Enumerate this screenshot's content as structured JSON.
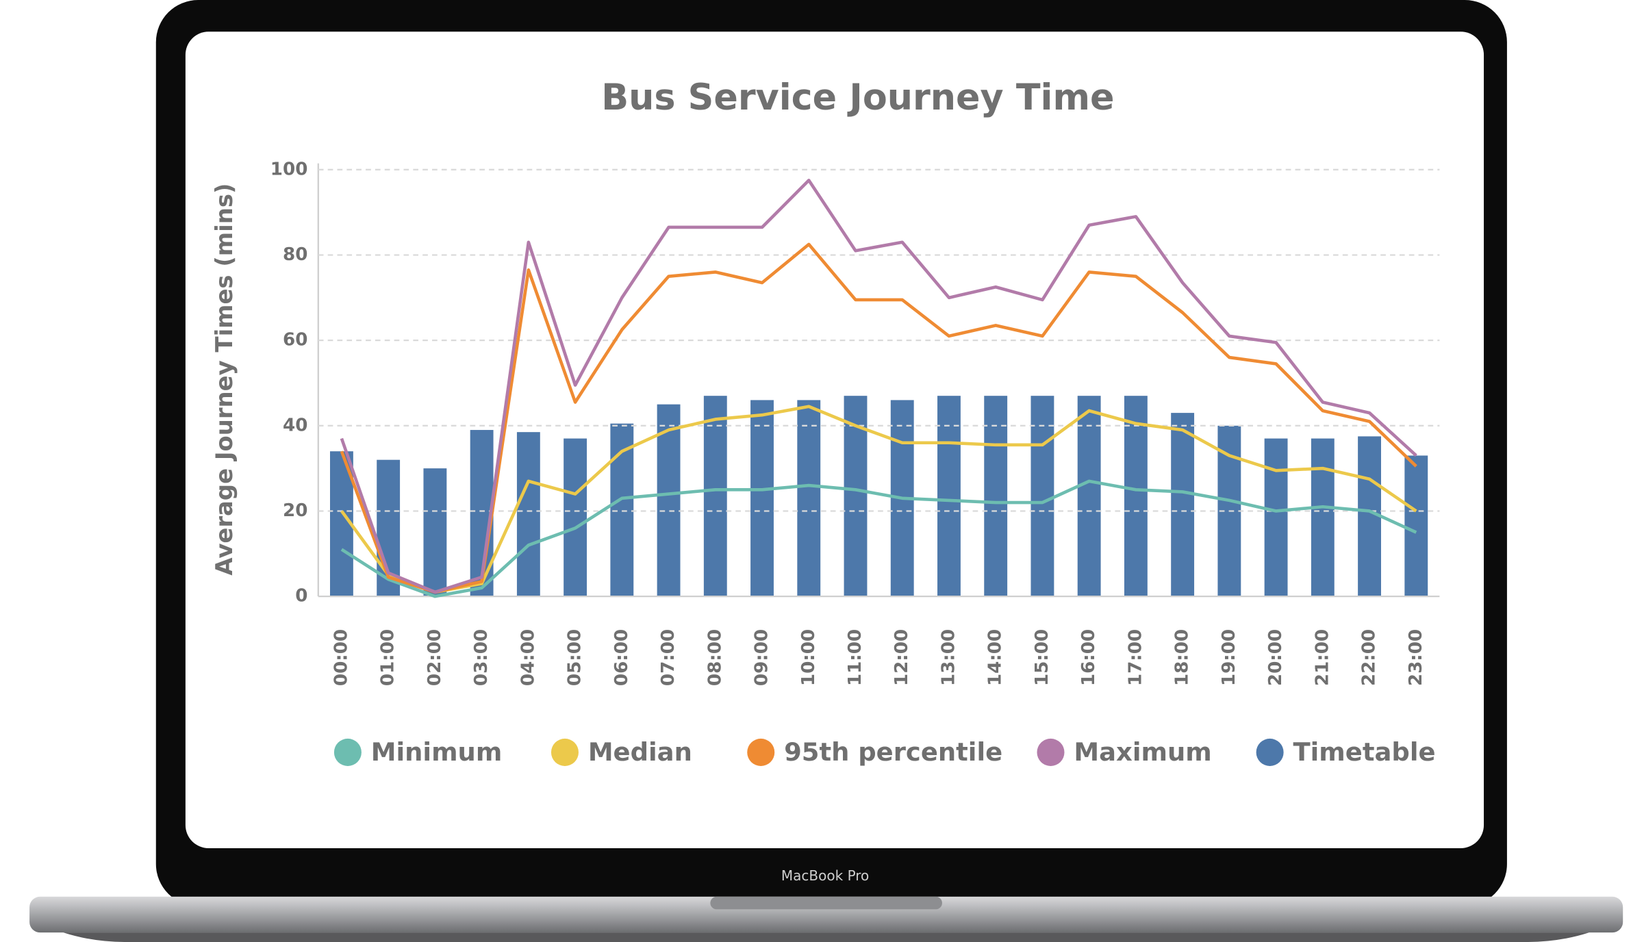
{
  "device_label": "MacBook Pro",
  "chart_data": {
    "type": "combo",
    "title": "Bus Service Journey Time",
    "y_label": "Average Journey Times (mins)",
    "categories": [
      "00:00",
      "01:00",
      "02:00",
      "03:00",
      "04:00",
      "05:00",
      "06:00",
      "07:00",
      "08:00",
      "09:00",
      "10:00",
      "11:00",
      "12:00",
      "13:00",
      "14:00",
      "15:00",
      "16:00",
      "17:00",
      "18:00",
      "19:00",
      "20:00",
      "21:00",
      "22:00",
      "23:00"
    ],
    "series": [
      {
        "name": "Minimum",
        "type": "line",
        "color": "#6dbdb0",
        "values": [
          11,
          4,
          0,
          2,
          12,
          16,
          23,
          24,
          25,
          25,
          26,
          25,
          23,
          22.5,
          22,
          22,
          27,
          25,
          24.5,
          22.5,
          20,
          21,
          20,
          15
        ]
      },
      {
        "name": "Median",
        "type": "line",
        "color": "#ecc94b",
        "values": [
          20,
          5,
          1,
          3,
          27,
          24,
          34,
          39,
          41.5,
          42.5,
          44.5,
          40,
          36,
          36,
          35.5,
          35.5,
          43.5,
          40.5,
          39,
          33,
          29.5,
          30,
          27.5,
          20
        ]
      },
      {
        "name": "95th percentile",
        "type": "line",
        "color": "#ef8b33",
        "values": [
          34,
          4.5,
          1,
          3.5,
          76.5,
          45.5,
          62.5,
          75,
          76,
          73.5,
          82.5,
          69.5,
          69.5,
          61,
          63.5,
          61,
          76,
          75,
          66.5,
          56,
          54.5,
          43.5,
          41,
          30.5
        ]
      },
      {
        "name": "Maximum",
        "type": "line",
        "color": "#b27ba9",
        "values": [
          37,
          5.5,
          1,
          4.5,
          83,
          49.5,
          70,
          86.5,
          86.5,
          86.5,
          97.5,
          81,
          83,
          70,
          72.5,
          69.5,
          87,
          89,
          73.5,
          61,
          59.5,
          45.5,
          43,
          33
        ]
      },
      {
        "name": "Timetable",
        "type": "bar",
        "color": "#4d78aa",
        "values": [
          34,
          32,
          30,
          39,
          38.5,
          37,
          40.5,
          45,
          47,
          46,
          46,
          47,
          46,
          47,
          47,
          47,
          47,
          47,
          43,
          40,
          37,
          37,
          37.5,
          33
        ]
      }
    ],
    "ylim": [
      0,
      100
    ],
    "yticks": [
      0,
      20,
      40,
      60,
      80,
      100
    ],
    "grid": true,
    "legend": "bottom"
  }
}
